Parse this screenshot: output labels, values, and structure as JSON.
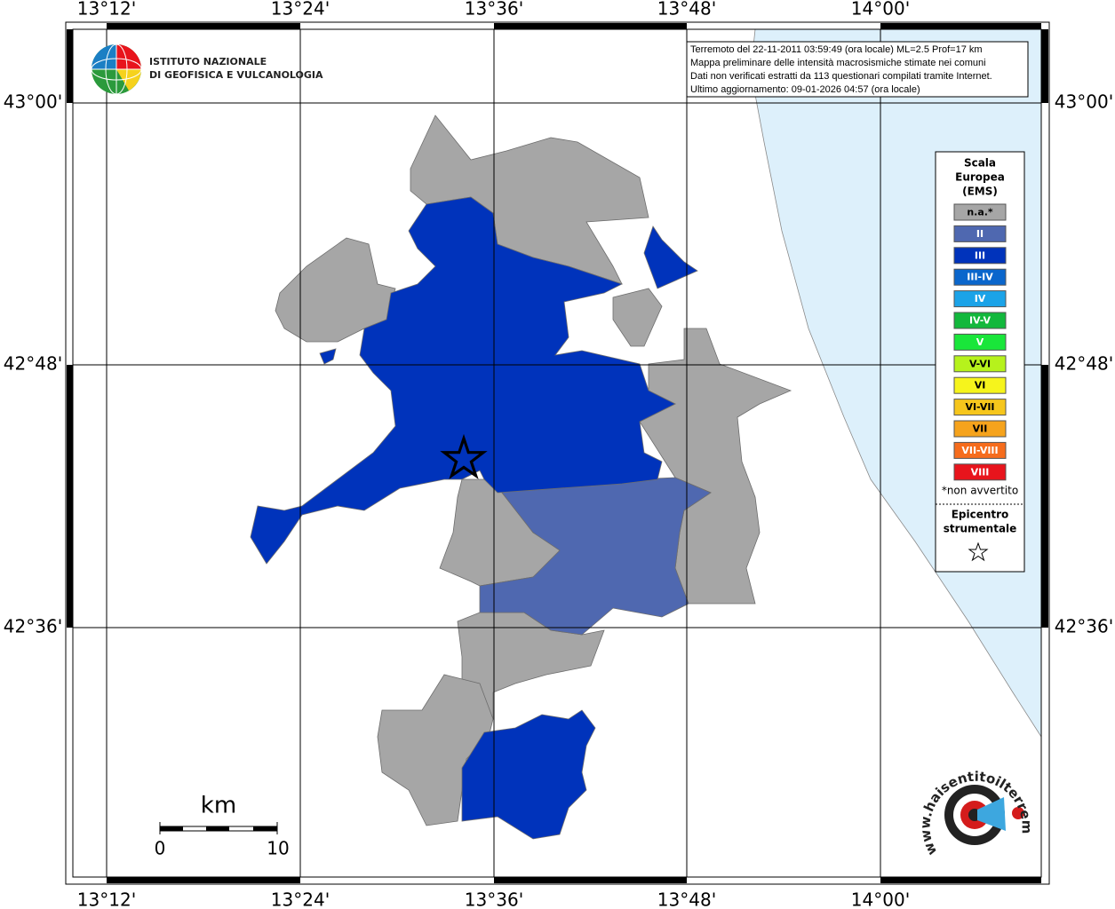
{
  "header": {
    "institute_line1": "ISTITUTO NAZIONALE",
    "institute_line2": "DI GEOFISICA E VULCANOLOGIA",
    "info": [
      "Terremoto del 22-11-2011 03:59:49 (ora locale) ML=2.5 Prof=17 km",
      "Mappa preliminare delle intensità macrosismiche stimate nei comuni",
      "Dati non verificati estratti da 113 questionari compilati tramite Internet.",
      "Ultimo aggiornamento: 09-01-2026 04:57 (ora locale)"
    ]
  },
  "map": {
    "lon_labels": [
      "13°12'",
      "13°24'",
      "13°36'",
      "13°48'",
      "14°00'"
    ],
    "lat_labels": [
      "43°00'",
      "42°48'",
      "42°36'"
    ]
  },
  "legend": {
    "title": [
      "Scala",
      "Europea",
      "(EMS)"
    ],
    "classes": [
      {
        "label": "n.a.*",
        "color": "#a6a6a6"
      },
      {
        "label": "II",
        "color": "#4f68b0"
      },
      {
        "label": "III",
        "color": "#0033bb"
      },
      {
        "label": "III-IV",
        "color": "#0a66cc"
      },
      {
        "label": "IV",
        "color": "#1ba3e8"
      },
      {
        "label": "IV-V",
        "color": "#12b83c"
      },
      {
        "label": "V",
        "color": "#19e63a"
      },
      {
        "label": "V-VI",
        "color": "#b6f21c"
      },
      {
        "label": "VI",
        "color": "#f6f41c"
      },
      {
        "label": "VI-VII",
        "color": "#f6c61c"
      },
      {
        "label": "VII",
        "color": "#f6a31c"
      },
      {
        "label": "VII-VIII",
        "color": "#f66c1c"
      },
      {
        "label": "VIII",
        "color": "#e8141c"
      }
    ],
    "note": "*non avvertito",
    "epicenter": [
      "Epicentro",
      "strumentale"
    ]
  },
  "scale": {
    "unit": "km",
    "labels": [
      "0",
      "10"
    ]
  },
  "logo": {
    "website": "www.haisentitoilterremoto.it"
  }
}
